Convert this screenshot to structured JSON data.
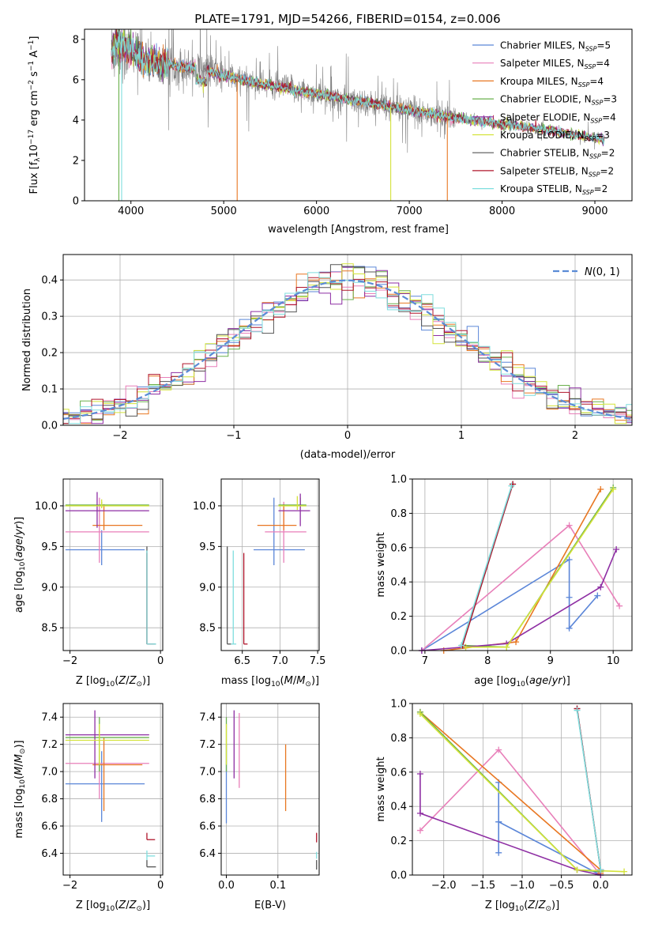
{
  "figure_title": "PLATE=1791, MJD=54266, FIBERID=0154, z=0.006",
  "series": [
    {
      "base": "Chabrier MILES",
      "n": "5",
      "color": "#5b86d8"
    },
    {
      "base": "Salpeter MILES",
      "n": "4",
      "color": "#e87fb9"
    },
    {
      "base": "Kroupa MILES",
      "n": "4",
      "color": "#e87722"
    },
    {
      "base": "Chabrier ELODIE",
      "n": "3",
      "color": "#6ab04c"
    },
    {
      "base": "Salpeter ELODIE",
      "n": "4",
      "color": "#8e2ea3"
    },
    {
      "base": "Kroupa ELODIE",
      "n": "3",
      "color": "#d4e33a"
    },
    {
      "base": "Chabrier STELIB",
      "n": "2",
      "color": "#555555"
    },
    {
      "base": "Salpeter STELIB",
      "n": "2",
      "color": "#b0162b"
    },
    {
      "base": "Kroupa STELIB",
      "n": "2",
      "color": "#7fdede"
    }
  ],
  "nssp_label": "N",
  "nssp_sub": "SSP",
  "chart_data": [
    {
      "id": "spectrum",
      "type": "line",
      "title": "PLATE=1791, MJD=54266, FIBERID=0154, z=0.006",
      "xlabel": "wavelength [Angstrom, rest frame]",
      "ylabel": "Flux [f_λ 10^-17 erg cm^-2 s^-1 A^-1]",
      "xlim": [
        3500,
        9400
      ],
      "ylim": [
        0,
        8.5
      ],
      "xticks": [
        4000,
        5000,
        6000,
        7000,
        8000,
        9000
      ],
      "yticks": [
        0,
        2,
        4,
        6,
        8
      ],
      "data_x_range": [
        3790,
        9100
      ],
      "continuum_knots": [
        [
          3790,
          7.4
        ],
        [
          3850,
          7.9
        ],
        [
          3950,
          7.6
        ],
        [
          4100,
          7.1
        ],
        [
          4300,
          6.8
        ],
        [
          4500,
          6.7
        ],
        [
          4800,
          6.5
        ],
        [
          5000,
          6.2
        ],
        [
          5500,
          5.7
        ],
        [
          6000,
          5.3
        ],
        [
          6500,
          4.9
        ],
        [
          7000,
          4.5
        ],
        [
          7500,
          4.1
        ],
        [
          8000,
          3.8
        ],
        [
          8500,
          3.5
        ],
        [
          9000,
          3.1
        ],
        [
          9100,
          3.0
        ]
      ],
      "legend_loc": "upper right",
      "grid": false
    },
    {
      "id": "residuals",
      "type": "histogram",
      "xlabel": "(data-model)/error",
      "ylabel": "Normed distribution",
      "xlim": [
        -2.5,
        2.5
      ],
      "ylim": [
        0,
        0.47
      ],
      "xticks": [
        -2,
        -1,
        0,
        1,
        2
      ],
      "xtick_labels": [
        "−2",
        "−1",
        "0",
        "1",
        "2"
      ],
      "yticks": [
        0.0,
        0.1,
        0.2,
        0.3,
        0.4
      ],
      "yticks_labels": [
        "0.0",
        "0.1",
        "0.2",
        "0.3",
        "0.4"
      ],
      "bin_width": 0.1,
      "legend": "N(0,1)",
      "legend_loc": "upper right",
      "grid": true
    },
    {
      "id": "age_vs_Z",
      "type": "scatter",
      "xlabel": "Z [log10(Z/Z⊙)]",
      "ylabel": "age [log10(age/yr)]",
      "xlim": [
        -2.15,
        0.05
      ],
      "ylim": [
        8.22,
        10.33
      ],
      "xticks": [
        -2,
        0
      ],
      "xtick_labels": [
        "−2",
        "0"
      ],
      "yticks": [
        8.5,
        9.0,
        9.5,
        10.0
      ],
      "ytick_labels": [
        "8.5",
        "9.0",
        "9.5",
        "10.0"
      ],
      "points": [
        {
          "s": 0,
          "x": -1.3,
          "y": 9.46,
          "xlo": -2.1,
          "xhi": -0.35,
          "ylo": 9.27,
          "yhi": 9.7
        },
        {
          "s": 1,
          "x": -1.35,
          "y": 9.68,
          "xlo": -2.1,
          "xhi": -0.25,
          "ylo": 9.3,
          "yhi": 10.1
        },
        {
          "s": 2,
          "x": -1.25,
          "y": 9.76,
          "xlo": -1.5,
          "xhi": -0.4,
          "ylo": 9.7,
          "yhi": 10.02
        },
        {
          "s": 3,
          "x": -1.3,
          "y": 10.01,
          "xlo": -2.1,
          "xhi": -0.25,
          "ylo": 9.98,
          "yhi": 10.05
        },
        {
          "s": 4,
          "x": -1.4,
          "y": 9.94,
          "xlo": -2.1,
          "xhi": -0.25,
          "ylo": 9.73,
          "yhi": 10.17
        },
        {
          "s": 5,
          "x": -1.3,
          "y": 10.0,
          "xlo": -2.1,
          "xhi": -0.25,
          "ylo": 9.97,
          "yhi": 10.08
        },
        {
          "s": 6,
          "x": -0.3,
          "y": 8.3,
          "xlo": -0.3,
          "xhi": -0.1,
          "ylo": 8.3,
          "yhi": 9.5
        },
        {
          "s": 7,
          "x": -0.3,
          "y": 8.3,
          "xlo": -0.3,
          "xhi": -0.15,
          "ylo": 8.3,
          "yhi": 9.42
        },
        {
          "s": 8,
          "x": -0.3,
          "y": 8.3,
          "xlo": -0.3,
          "xhi": -0.1,
          "ylo": 8.3,
          "yhi": 9.45
        }
      ],
      "grid": true
    },
    {
      "id": "age_vs_mass",
      "type": "scatter",
      "xlabel": "mass [log10(M/M⊙)]",
      "ylabel": "",
      "xlim": [
        6.22,
        7.52
      ],
      "ylim": [
        8.22,
        10.33
      ],
      "xticks": [
        6.5,
        7.0,
        7.5
      ],
      "xtick_labels": [
        "6.5",
        "7.0",
        "7.5"
      ],
      "yticks": [
        8.5,
        9.0,
        9.5,
        10.0
      ],
      "ytick_labels": [
        "8.5",
        "9.0",
        "9.5",
        "10.0"
      ],
      "points": [
        {
          "s": 0,
          "x": 6.92,
          "y": 9.46,
          "xlo": 6.65,
          "xhi": 7.33,
          "ylo": 9.27,
          "yhi": 10.1
        },
        {
          "s": 1,
          "x": 7.05,
          "y": 9.68,
          "xlo": 6.8,
          "xhi": 7.35,
          "ylo": 9.3,
          "yhi": 10.05
        },
        {
          "s": 2,
          "x": 7.05,
          "y": 9.76,
          "xlo": 6.7,
          "xhi": 7.22,
          "ylo": 9.7,
          "yhi": 10.02
        },
        {
          "s": 3,
          "x": 7.27,
          "y": 10.01,
          "xlo": 6.98,
          "xhi": 7.35,
          "ylo": 9.98,
          "yhi": 10.1
        },
        {
          "s": 4,
          "x": 7.27,
          "y": 9.94,
          "xlo": 6.98,
          "xhi": 7.4,
          "ylo": 9.75,
          "yhi": 10.15
        },
        {
          "s": 5,
          "x": 7.23,
          "y": 10.0,
          "xlo": 6.98,
          "xhi": 7.35,
          "ylo": 9.95,
          "yhi": 10.12
        },
        {
          "s": 6,
          "x": 6.3,
          "y": 8.3,
          "xlo": 6.3,
          "xhi": 6.35,
          "ylo": 8.3,
          "yhi": 9.5
        },
        {
          "s": 7,
          "x": 6.52,
          "y": 8.3,
          "xlo": 6.52,
          "xhi": 6.57,
          "ylo": 8.3,
          "yhi": 9.42
        },
        {
          "s": 8,
          "x": 6.38,
          "y": 8.3,
          "xlo": 6.35,
          "xhi": 6.42,
          "ylo": 8.3,
          "yhi": 9.45
        }
      ],
      "grid": true
    },
    {
      "id": "weight_vs_age",
      "type": "line",
      "xlabel": "age [log10(age/yr)]",
      "ylabel": "mass weight",
      "xlim": [
        6.8,
        10.3
      ],
      "ylim": [
        0,
        1.0
      ],
      "xticks": [
        7,
        8,
        9,
        10
      ],
      "xtick_labels": [
        "7",
        "8",
        "9",
        "10"
      ],
      "yticks": [
        0.0,
        0.2,
        0.4,
        0.6,
        0.8,
        1.0
      ],
      "ytick_labels": [
        "0.0",
        "0.2",
        "0.4",
        "0.6",
        "0.8",
        "1.0"
      ],
      "series_points": [
        {
          "s": 0,
          "x": [
            6.95,
            9.3,
            9.3,
            9.3,
            9.75
          ],
          "y": [
            0.0,
            0.53,
            0.31,
            0.13,
            0.32
          ]
        },
        {
          "s": 1,
          "x": [
            6.95,
            9.3,
            10.1
          ],
          "y": [
            0.0,
            0.73,
            0.26
          ]
        },
        {
          "s": 2,
          "x": [
            7.3,
            8.45,
            9.8
          ],
          "y": [
            0.0,
            0.05,
            0.94
          ]
        },
        {
          "s": 3,
          "x": [
            7.6,
            8.3,
            10.0
          ],
          "y": [
            0.03,
            0.02,
            0.95
          ]
        },
        {
          "s": 4,
          "x": [
            6.95,
            8.3,
            9.8,
            10.05
          ],
          "y": [
            0.0,
            0.04,
            0.37,
            0.59
          ]
        },
        {
          "s": 5,
          "x": [
            7.65,
            8.3,
            10.0
          ],
          "y": [
            0.02,
            0.02,
            0.94
          ]
        },
        {
          "s": 6,
          "x": [
            7.6,
            8.4
          ],
          "y": [
            0.03,
            0.97
          ]
        },
        {
          "s": 7,
          "x": [
            7.6,
            8.4
          ],
          "y": [
            0.03,
            0.97
          ]
        },
        {
          "s": 8,
          "x": [
            7.58,
            8.38
          ],
          "y": [
            0.03,
            0.96
          ]
        }
      ],
      "grid": true
    },
    {
      "id": "mass_vs_Z",
      "type": "scatter",
      "xlabel": "Z [log10(Z/Z⊙)]",
      "ylabel": "mass [log10(M/M⊙)]",
      "xlim": [
        -2.15,
        0.05
      ],
      "ylim": [
        6.24,
        7.5
      ],
      "xticks": [
        -2,
        0
      ],
      "xtick_labels": [
        "−2",
        "0"
      ],
      "yticks": [
        6.4,
        6.6,
        6.8,
        7.0,
        7.2,
        7.4
      ],
      "ytick_labels": [
        "6.4",
        "6.6",
        "6.8",
        "7.0",
        "7.2",
        "7.4"
      ],
      "points": [
        {
          "s": 0,
          "x": -1.3,
          "y": 6.91,
          "xlo": -2.1,
          "xhi": -0.35,
          "ylo": 6.63,
          "yhi": 7.15
        },
        {
          "s": 1,
          "x": -1.35,
          "y": 7.06,
          "xlo": -2.1,
          "xhi": -0.25,
          "ylo": 6.8,
          "yhi": 7.3
        },
        {
          "s": 2,
          "x": -1.25,
          "y": 7.05,
          "xlo": -1.5,
          "xhi": -0.4,
          "ylo": 6.71,
          "yhi": 7.25
        },
        {
          "s": 3,
          "x": -1.35,
          "y": 7.25,
          "xlo": -2.1,
          "xhi": -0.25,
          "ylo": 7.0,
          "yhi": 7.4
        },
        {
          "s": 4,
          "x": -1.45,
          "y": 7.27,
          "xlo": -2.1,
          "xhi": -0.25,
          "ylo": 6.95,
          "yhi": 7.45
        },
        {
          "s": 5,
          "x": -1.35,
          "y": 7.23,
          "xlo": -2.1,
          "xhi": -0.25,
          "ylo": 7.05,
          "yhi": 7.35
        },
        {
          "s": 6,
          "x": -0.3,
          "y": 6.3,
          "xlo": -0.3,
          "xhi": -0.1,
          "ylo": 6.3,
          "yhi": 6.35
        },
        {
          "s": 7,
          "x": -0.3,
          "y": 6.5,
          "xlo": -0.3,
          "xhi": -0.12,
          "ylo": 6.5,
          "yhi": 6.55
        },
        {
          "s": 8,
          "x": -0.3,
          "y": 6.38,
          "xlo": -0.3,
          "xhi": -0.12,
          "ylo": 6.35,
          "yhi": 6.42
        }
      ],
      "grid": true
    },
    {
      "id": "mass_vs_ebv",
      "type": "scatter",
      "xlabel": "E(B-V)",
      "ylabel": "",
      "xlim": [
        -0.01,
        0.18
      ],
      "ylim": [
        6.24,
        7.5
      ],
      "xticks": [
        0.0,
        0.1
      ],
      "xtick_labels": [
        "0.0",
        "0.1"
      ],
      "yticks": [
        6.4,
        6.6,
        6.8,
        7.0,
        7.2,
        7.4
      ],
      "ytick_labels": [
        "6.4",
        "6.6",
        "6.8",
        "7.0",
        "7.2",
        "7.4"
      ],
      "points": [
        {
          "s": 0,
          "x": 0.0,
          "y": 6.91,
          "ylo": 6.62,
          "yhi": 7.2
        },
        {
          "s": 1,
          "x": 0.025,
          "y": 7.06,
          "ylo": 6.88,
          "yhi": 7.43
        },
        {
          "s": 2,
          "x": 0.115,
          "y": 7.05,
          "ylo": 6.71,
          "yhi": 7.2
        },
        {
          "s": 3,
          "x": 0.0,
          "y": 7.25,
          "ylo": 7.0,
          "yhi": 7.4
        },
        {
          "s": 4,
          "x": 0.015,
          "y": 7.27,
          "ylo": 6.95,
          "yhi": 7.45
        },
        {
          "s": 5,
          "x": 0.0,
          "y": 7.23,
          "ylo": 7.05,
          "yhi": 7.35
        },
        {
          "s": 6,
          "x": 0.175,
          "y": 6.3,
          "ylo": 6.28,
          "yhi": 6.35
        },
        {
          "s": 7,
          "x": 0.175,
          "y": 6.5,
          "ylo": 6.48,
          "yhi": 6.55
        },
        {
          "s": 8,
          "x": 0.175,
          "y": 6.38,
          "ylo": 6.36,
          "yhi": 6.41
        }
      ],
      "grid": true
    },
    {
      "id": "weight_vs_Z",
      "type": "line",
      "xlabel": "Z [log10(Z/Z⊙)]",
      "ylabel": "mass weight",
      "xlim": [
        -2.4,
        0.4
      ],
      "ylim": [
        0,
        1.0
      ],
      "xticks": [
        -2.0,
        -1.5,
        -1.0,
        -0.5,
        0.0
      ],
      "xtick_labels": [
        "−2.0",
        "−1.5",
        "−1.0",
        "−0.5",
        "0.0"
      ],
      "yticks": [
        0.0,
        0.2,
        0.4,
        0.6,
        0.8,
        1.0
      ],
      "ytick_labels": [
        "0.0",
        "0.2",
        "0.4",
        "0.6",
        "0.8",
        "1.0"
      ],
      "series_points": [
        {
          "s": 0,
          "x": [
            -1.3,
            -1.3,
            -1.3,
            -1.3,
            0.0
          ],
          "y": [
            0.54,
            0.31,
            0.13,
            0.31,
            0.0
          ]
        },
        {
          "s": 1,
          "x": [
            -2.3,
            -1.3,
            0.0
          ],
          "y": [
            0.26,
            0.73,
            0.0
          ]
        },
        {
          "s": 2,
          "x": [
            -2.3,
            0.0,
            0.0
          ],
          "y": [
            0.95,
            0.03,
            0.01
          ]
        },
        {
          "s": 3,
          "x": [
            -2.3,
            -0.3,
            0.0
          ],
          "y": [
            0.95,
            0.03,
            0.02
          ]
        },
        {
          "s": 4,
          "x": [
            -2.3,
            -2.3,
            -0.3,
            0.0
          ],
          "y": [
            0.59,
            0.36,
            0.03,
            0.0
          ]
        },
        {
          "s": 5,
          "x": [
            -2.3,
            -0.3,
            0.3
          ],
          "y": [
            0.94,
            0.03,
            0.02
          ]
        },
        {
          "s": 6,
          "x": [
            -0.3,
            0.0
          ],
          "y": [
            0.97,
            0.03
          ]
        },
        {
          "s": 7,
          "x": [
            -0.3,
            0.0
          ],
          "y": [
            0.97,
            0.03
          ]
        },
        {
          "s": 8,
          "x": [
            -0.3,
            0.0
          ],
          "y": [
            0.96,
            0.03
          ]
        }
      ],
      "grid": true
    }
  ]
}
